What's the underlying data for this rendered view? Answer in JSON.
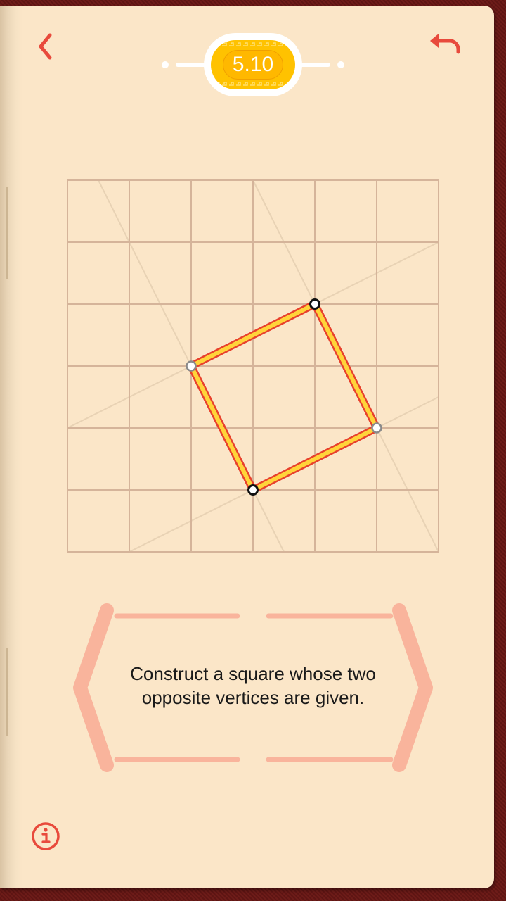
{
  "level": {
    "number": "5.10"
  },
  "nav": {
    "back_icon": "chevron-left-icon",
    "undo_icon": "undo-arrow-icon",
    "info_icon": "info-circle-icon"
  },
  "hint": {
    "line1": "Construct a square whose two",
    "line2": "opposite vertices are given."
  },
  "colors": {
    "page": "#fbe6c8",
    "frame": "#6a1a18",
    "accent_red": "#e84a3c",
    "badge_gold": "#ffc200",
    "grid_line": "#d5b49a",
    "square_fill": "#ffd43a",
    "square_stroke": "#e8402c",
    "bracket": "#f9b49c"
  }
}
